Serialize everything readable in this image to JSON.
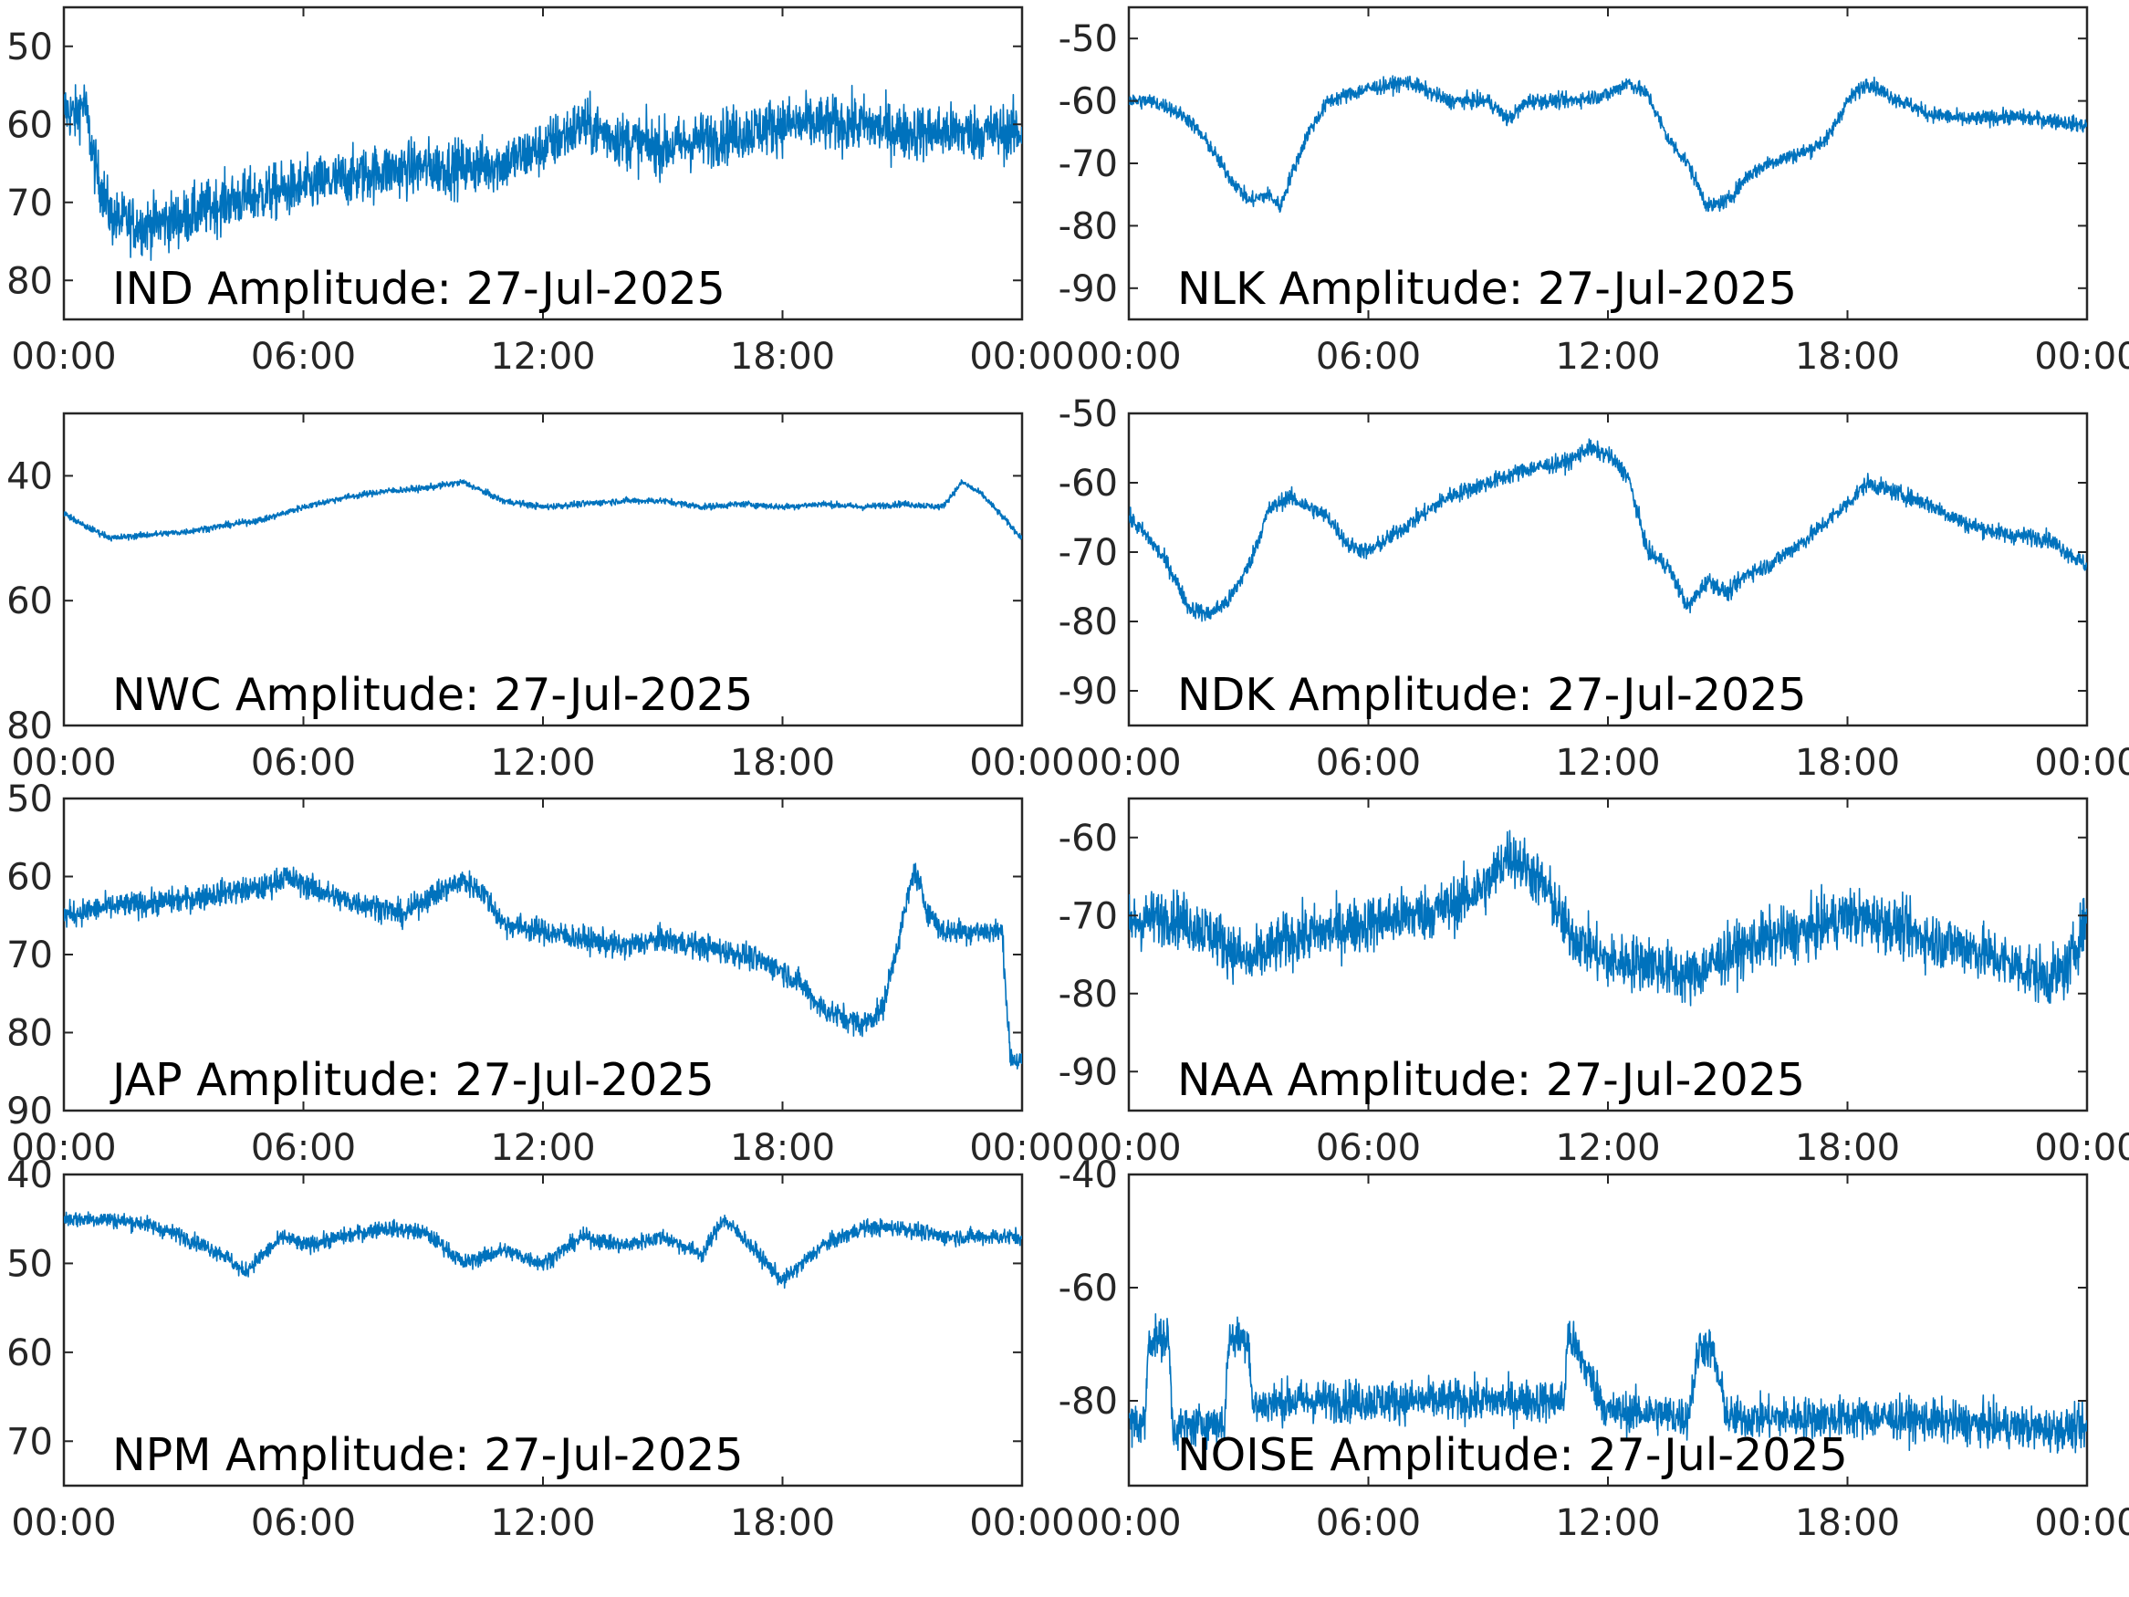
{
  "figure": {
    "trace_color": "#0072BD"
  },
  "chart_data": [
    {
      "type": "line",
      "title": "IND Amplitude: 27-Jul-2025",
      "x_ticks": [
        "00:00",
        "06:00",
        "12:00",
        "18:00",
        "00:00"
      ],
      "xlim_hours": [
        0,
        24
      ],
      "ylim": [
        -85,
        -45
      ],
      "y_ticks": [
        -50,
        -60,
        -70,
        -80
      ],
      "y_tick_labels": [
        "50",
        "60",
        "70",
        "80"
      ],
      "noise": 3.5,
      "trend": [
        [
          0,
          -58
        ],
        [
          0.3,
          -59
        ],
        [
          0.5,
          -57
        ],
        [
          0.8,
          -66
        ],
        [
          1.2,
          -72
        ],
        [
          2,
          -73
        ],
        [
          3,
          -72
        ],
        [
          4,
          -70
        ],
        [
          5,
          -69
        ],
        [
          6,
          -68
        ],
        [
          7,
          -67
        ],
        [
          8,
          -66
        ],
        [
          9,
          -65.5
        ],
        [
          10,
          -65.5
        ],
        [
          11,
          -65
        ],
        [
          12,
          -63
        ],
        [
          13,
          -60
        ],
        [
          14,
          -62
        ],
        [
          15,
          -63
        ],
        [
          16,
          -62
        ],
        [
          17,
          -61
        ],
        [
          18,
          -60
        ],
        [
          19,
          -60
        ],
        [
          20,
          -60
        ],
        [
          21,
          -61
        ],
        [
          22,
          -61
        ],
        [
          23,
          -61
        ],
        [
          24,
          -61
        ]
      ]
    },
    {
      "type": "line",
      "title": "NLK Amplitude: 27-Jul-2025",
      "x_ticks": [
        "00:00",
        "06:00",
        "12:00",
        "18:00",
        "00:00"
      ],
      "xlim_hours": [
        0,
        24
      ],
      "ylim": [
        -95,
        -45
      ],
      "y_ticks": [
        -50,
        -60,
        -70,
        -80,
        -90
      ],
      "y_tick_labels": [
        "-50",
        "-60",
        "-70",
        "-80",
        "-90"
      ],
      "noise": 1.2,
      "trend": [
        [
          0,
          -60
        ],
        [
          0.5,
          -60
        ],
        [
          1,
          -61
        ],
        [
          1.5,
          -63
        ],
        [
          2,
          -67
        ],
        [
          2.5,
          -72
        ],
        [
          3,
          -76
        ],
        [
          3.5,
          -75
        ],
        [
          3.8,
          -77
        ],
        [
          4,
          -73
        ],
        [
          4.5,
          -65
        ],
        [
          5,
          -60
        ],
        [
          6,
          -58
        ],
        [
          7,
          -57
        ],
        [
          8,
          -60
        ],
        [
          9,
          -60
        ],
        [
          9.5,
          -63
        ],
        [
          10,
          -60
        ],
        [
          11,
          -60
        ],
        [
          12,
          -59
        ],
        [
          12.5,
          -57
        ],
        [
          13,
          -59
        ],
        [
          13.5,
          -66
        ],
        [
          14,
          -70
        ],
        [
          14.5,
          -77
        ],
        [
          15,
          -76
        ],
        [
          15.5,
          -72
        ],
        [
          16,
          -70
        ],
        [
          17,
          -68
        ],
        [
          17.5,
          -66
        ],
        [
          18,
          -60
        ],
        [
          18.5,
          -57
        ],
        [
          19,
          -59
        ],
        [
          20,
          -62
        ],
        [
          21,
          -63
        ],
        [
          22,
          -62.5
        ],
        [
          23,
          -63
        ],
        [
          24,
          -64
        ]
      ]
    },
    {
      "type": "line",
      "title": "NWC Amplitude: 27-Jul-2025",
      "x_ticks": [
        "00:00",
        "06:00",
        "12:00",
        "18:00",
        "00:00"
      ],
      "xlim_hours": [
        0,
        24
      ],
      "ylim": [
        -80,
        -30
      ],
      "y_ticks": [
        -40,
        -60,
        -80
      ],
      "y_tick_labels": [
        "40",
        "60",
        "80"
      ],
      "noise": 0.5,
      "trend": [
        [
          0,
          -46
        ],
        [
          0.5,
          -48
        ],
        [
          1.2,
          -50
        ],
        [
          2,
          -49.5
        ],
        [
          3,
          -49
        ],
        [
          4,
          -48
        ],
        [
          5,
          -47
        ],
        [
          6,
          -45
        ],
        [
          7,
          -43.5
        ],
        [
          8,
          -42.5
        ],
        [
          9,
          -42
        ],
        [
          10,
          -41
        ],
        [
          11,
          -44
        ],
        [
          12,
          -45
        ],
        [
          13,
          -44.5
        ],
        [
          14,
          -44
        ],
        [
          15,
          -44
        ],
        [
          16,
          -45
        ],
        [
          17,
          -44.5
        ],
        [
          18,
          -45
        ],
        [
          19,
          -44.5
        ],
        [
          20,
          -45
        ],
        [
          21,
          -44.5
        ],
        [
          22,
          -45
        ],
        [
          22.5,
          -41
        ],
        [
          23,
          -43
        ],
        [
          24,
          -50
        ]
      ]
    },
    {
      "type": "line",
      "title": "NDK Amplitude: 27-Jul-2025",
      "x_ticks": [
        "00:00",
        "06:00",
        "12:00",
        "18:00",
        "00:00"
      ],
      "xlim_hours": [
        0,
        24
      ],
      "ylim": [
        -95,
        -50
      ],
      "y_ticks": [
        -50,
        -60,
        -70,
        -80,
        -90
      ],
      "y_tick_labels": [
        "-50",
        "-60",
        "-70",
        "-80",
        "-90"
      ],
      "noise": 1.2,
      "trend": [
        [
          0,
          -65
        ],
        [
          0.5,
          -68
        ],
        [
          1,
          -72
        ],
        [
          1.5,
          -78
        ],
        [
          2,
          -79
        ],
        [
          2.5,
          -77
        ],
        [
          3,
          -72
        ],
        [
          3.5,
          -64
        ],
        [
          4,
          -62
        ],
        [
          5,
          -65
        ],
        [
          5.5,
          -69
        ],
        [
          6,
          -70
        ],
        [
          7,
          -66
        ],
        [
          8,
          -62
        ],
        [
          9,
          -60
        ],
        [
          10,
          -58
        ],
        [
          11,
          -57
        ],
        [
          11.5,
          -55
        ],
        [
          12,
          -56
        ],
        [
          12.5,
          -59
        ],
        [
          13,
          -70
        ],
        [
          13.5,
          -72
        ],
        [
          14,
          -78
        ],
        [
          14.5,
          -74
        ],
        [
          15,
          -76
        ],
        [
          15.5,
          -73
        ],
        [
          16,
          -72
        ],
        [
          17,
          -68
        ],
        [
          18,
          -63
        ],
        [
          18.5,
          -60
        ],
        [
          19,
          -61
        ],
        [
          20,
          -63
        ],
        [
          21,
          -66
        ],
        [
          22,
          -67.5
        ],
        [
          23,
          -68
        ],
        [
          24,
          -72
        ]
      ]
    },
    {
      "type": "line",
      "title": "JAP Amplitude: 27-Jul-2025",
      "x_ticks": [
        "00:00",
        "06:00",
        "12:00",
        "18:00",
        "00:00"
      ],
      "xlim_hours": [
        0,
        24
      ],
      "ylim": [
        -90,
        -50
      ],
      "y_ticks": [
        -50,
        -60,
        -70,
        -80,
        -90
      ],
      "y_tick_labels": [
        "50",
        "60",
        "70",
        "80",
        "90"
      ],
      "noise": 1.6,
      "trend": [
        [
          0,
          -65
        ],
        [
          1,
          -64
        ],
        [
          2,
          -63.5
        ],
        [
          3,
          -63
        ],
        [
          4,
          -62
        ],
        [
          5,
          -61.5
        ],
        [
          5.5,
          -60
        ],
        [
          6,
          -61
        ],
        [
          7,
          -63
        ],
        [
          8,
          -64
        ],
        [
          8.5,
          -65
        ],
        [
          9,
          -63
        ],
        [
          10,
          -60.5
        ],
        [
          10.5,
          -62
        ],
        [
          11,
          -66
        ],
        [
          12,
          -67
        ],
        [
          13,
          -68
        ],
        [
          14,
          -69
        ],
        [
          15,
          -68
        ],
        [
          16,
          -69
        ],
        [
          17,
          -70
        ],
        [
          18,
          -72
        ],
        [
          18.5,
          -74
        ],
        [
          19,
          -77
        ],
        [
          19.5,
          -78
        ],
        [
          20,
          -79
        ],
        [
          20.5,
          -77
        ],
        [
          21,
          -66
        ],
        [
          21.3,
          -59
        ],
        [
          21.6,
          -64
        ],
        [
          22,
          -67
        ],
        [
          23,
          -67
        ],
        [
          23.5,
          -67
        ],
        [
          23.7,
          -83
        ],
        [
          24,
          -84
        ]
      ]
    },
    {
      "type": "line",
      "title": "NAA Amplitude: 27-Jul-2025",
      "x_ticks": [
        "00:00",
        "06:00",
        "12:00",
        "18:00",
        "00:00"
      ],
      "xlim_hours": [
        0,
        24
      ],
      "ylim": [
        -95,
        -55
      ],
      "y_ticks": [
        -60,
        -70,
        -80,
        -90
      ],
      "y_tick_labels": [
        "-60",
        "-70",
        "-80",
        "-90"
      ],
      "noise": 3.5,
      "trend": [
        [
          0,
          -71
        ],
        [
          1,
          -70
        ],
        [
          2,
          -72
        ],
        [
          3,
          -76
        ],
        [
          4,
          -73
        ],
        [
          5,
          -72
        ],
        [
          6,
          -71
        ],
        [
          7,
          -70
        ],
        [
          8,
          -69
        ],
        [
          9,
          -66
        ],
        [
          9.5,
          -62
        ],
        [
          10,
          -64
        ],
        [
          10.5,
          -67
        ],
        [
          11,
          -72
        ],
        [
          12,
          -76
        ],
        [
          13,
          -76
        ],
        [
          14,
          -78
        ],
        [
          15,
          -75
        ],
        [
          16,
          -73
        ],
        [
          17,
          -72
        ],
        [
          18,
          -70
        ],
        [
          19,
          -71
        ],
        [
          20,
          -73
        ],
        [
          21,
          -74
        ],
        [
          22,
          -76
        ],
        [
          22.5,
          -77
        ],
        [
          23,
          -78
        ],
        [
          23.5,
          -77
        ],
        [
          24,
          -70
        ]
      ]
    },
    {
      "type": "line",
      "title": "NPM Amplitude: 27-Jul-2025",
      "x_ticks": [
        "00:00",
        "06:00",
        "12:00",
        "18:00",
        "00:00"
      ],
      "xlim_hours": [
        0,
        24
      ],
      "ylim": [
        -75,
        -40
      ],
      "y_ticks": [
        -40,
        -50,
        -60,
        -70
      ],
      "y_tick_labels": [
        "40",
        "50",
        "60",
        "70"
      ],
      "noise": 0.9,
      "trend": [
        [
          0,
          -45
        ],
        [
          1,
          -45
        ],
        [
          2,
          -45.5
        ],
        [
          3,
          -47
        ],
        [
          4,
          -49
        ],
        [
          4.5,
          -51
        ],
        [
          5,
          -49
        ],
        [
          5.5,
          -47
        ],
        [
          6,
          -48
        ],
        [
          7,
          -47
        ],
        [
          8,
          -46
        ],
        [
          9,
          -46.5
        ],
        [
          9.5,
          -48
        ],
        [
          10,
          -50
        ],
        [
          11,
          -48.5
        ],
        [
          12,
          -50
        ],
        [
          13,
          -47
        ],
        [
          14,
          -48
        ],
        [
          15,
          -47
        ],
        [
          16,
          -49
        ],
        [
          16.5,
          -45
        ],
        [
          17,
          -47
        ],
        [
          18,
          -52
        ],
        [
          18.5,
          -50
        ],
        [
          19,
          -48
        ],
        [
          20,
          -46
        ],
        [
          21,
          -46
        ],
        [
          22,
          -47
        ],
        [
          23,
          -47
        ],
        [
          24,
          -47
        ]
      ]
    },
    {
      "type": "line",
      "title": "NOISE Amplitude: 27-Jul-2025",
      "x_ticks": [
        "00:00",
        "06:00",
        "12:00",
        "18:00",
        "00:00"
      ],
      "xlim_hours": [
        0,
        24
      ],
      "ylim": [
        -95,
        -40
      ],
      "y_ticks": [
        -40,
        -60,
        -80
      ],
      "y_tick_labels": [
        "-40",
        "-60",
        "-80"
      ],
      "noise": 3.6,
      "trend": [
        [
          0,
          -84
        ],
        [
          0.4,
          -84
        ],
        [
          0.5,
          -69
        ],
        [
          1,
          -69
        ],
        [
          1.1,
          -85
        ],
        [
          2,
          -84
        ],
        [
          2.4,
          -84
        ],
        [
          2.5,
          -69
        ],
        [
          3,
          -69
        ],
        [
          3.1,
          -81
        ],
        [
          4,
          -80
        ],
        [
          6,
          -80
        ],
        [
          8,
          -80
        ],
        [
          10,
          -80
        ],
        [
          10.9,
          -80
        ],
        [
          11,
          -68
        ],
        [
          11.5,
          -75
        ],
        [
          12,
          -82
        ],
        [
          13,
          -82
        ],
        [
          14,
          -83
        ],
        [
          14.3,
          -70
        ],
        [
          14.6,
          -71
        ],
        [
          15,
          -83
        ],
        [
          17,
          -83
        ],
        [
          19,
          -83
        ],
        [
          21,
          -84
        ],
        [
          23,
          -85
        ],
        [
          24,
          -85
        ]
      ]
    }
  ]
}
